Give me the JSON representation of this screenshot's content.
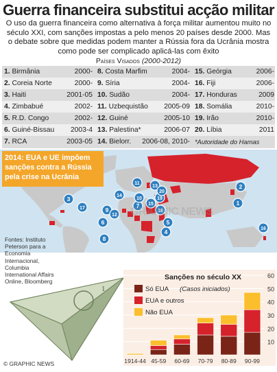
{
  "title": "Guerra financeira substitui acção militar",
  "intro": "O uso da guerra financeira como alternativa à força militar aumentou muito no século XXI, com sanções impostas a pelo menos 20 países desde 2000. Mas o debate sobre que medidas podem manter a Rússia fora da Ucrânia mostra como pode ser complicado aplicá-las com êxito",
  "subhead": {
    "label": "Países Visados",
    "range": "(2000-2012)"
  },
  "countries": [
    {
      "num": "1.",
      "name": "Birmânia",
      "years": "2000-"
    },
    {
      "num": "2.",
      "name": "Coreia Norte",
      "years": "2000-"
    },
    {
      "num": "3.",
      "name": "Haiti",
      "years": "2001-05"
    },
    {
      "num": "4.",
      "name": "Zimbabué",
      "years": "2002-"
    },
    {
      "num": "5.",
      "name": "R.D. Congo",
      "years": "2002-"
    },
    {
      "num": "6.",
      "name": "Guiné-Bissau",
      "years": "2003-4"
    },
    {
      "num": "7.",
      "name": "RCA",
      "years": "2003-05"
    },
    {
      "num": "8.",
      "name": "Costa Marfim",
      "years": "2004-"
    },
    {
      "num": "9.",
      "name": "Síria",
      "years": "2004-"
    },
    {
      "num": "10.",
      "name": "Sudão",
      "years": "2004-"
    },
    {
      "num": "11.",
      "name": "Uzbequistão",
      "years": "2005-09"
    },
    {
      "num": "12.",
      "name": "Guiné",
      "years": "2005-10"
    },
    {
      "num": "13.",
      "name": "Palestina*",
      "years": "2006-07"
    },
    {
      "num": "14.",
      "name": "Bielorr.",
      "years": "2006-08, 2010-"
    },
    {
      "num": "15.",
      "name": "Geórgia",
      "years": "2006-"
    },
    {
      "num": "16.",
      "name": "Fiji",
      "years": "2006-"
    },
    {
      "num": "17.",
      "name": "Honduras",
      "years": "2009"
    },
    {
      "num": "18.",
      "name": "Somália",
      "years": "2010-"
    },
    {
      "num": "19.",
      "name": "Irão",
      "years": "2010-"
    },
    {
      "num": "20.",
      "name": "Líbia",
      "years": "2011"
    }
  ],
  "footnote": "*Autoridade do Hamas",
  "callout": "2014: EUA e UE impõem sanções contra a Rússia pela crise na Ucrânia",
  "sources": "Fontes: Instituto Peterson para a Economia Internacional, Columbia International Affairs Online, Bloomberg",
  "watermark": "GRAPHIC NEWS",
  "credit": "© GRAPHIC NEWS",
  "map_markers": [
    "1",
    "2",
    "3",
    "4",
    "5",
    "6",
    "7",
    "8",
    "9",
    "10",
    "11",
    "12",
    "13",
    "14",
    "15",
    "16",
    "17",
    "18",
    "19",
    "20"
  ],
  "colors": {
    "red": "#d6222b",
    "orange": "#f29a1f",
    "yellow": "#fbbe2c",
    "ocean": "#cfe3f0",
    "land": "#c9c9c9",
    "marker": "#2e7fc0",
    "darkbar": "#7a2418"
  },
  "chart_data": {
    "type": "bar",
    "title": "Sanções no século XX",
    "categories": [
      "1914-44",
      "45-59",
      "60-69",
      "70-79",
      "80-89",
      "90-99"
    ],
    "series": [
      {
        "name": "Só EUA",
        "values": [
          0,
          4,
          8,
          15,
          14,
          17
        ]
      },
      {
        "name": "EUA e outros",
        "values": [
          0,
          3,
          4,
          9,
          9,
          17
        ]
      },
      {
        "name": "Não EUA",
        "values": [
          1,
          4,
          3,
          4,
          7,
          13
        ]
      }
    ],
    "legend_note": "(Casos iniciados)",
    "ylim": [
      0,
      60
    ],
    "yticks": [
      "10",
      "20",
      "30",
      "40",
      "50",
      "60"
    ]
  }
}
